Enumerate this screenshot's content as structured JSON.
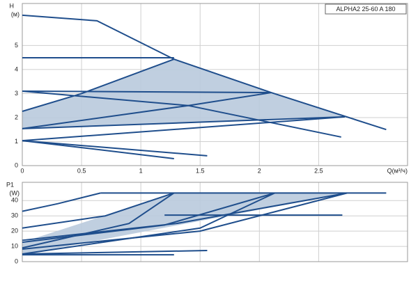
{
  "chart_data": [
    {
      "type": "line",
      "title": "ALPHA2 25-60 A 180",
      "y_label": "H",
      "y_unit": "(м)",
      "x_label": "Q(м³/ч)",
      "xlim": [
        0,
        3.25
      ],
      "ylim": [
        0,
        6.75
      ],
      "xticks": [
        0,
        0.5,
        1,
        1.5,
        2,
        2.5
      ],
      "yticks": [
        0,
        1,
        2,
        3,
        4,
        5
      ],
      "grid": true,
      "area": {
        "color": "#b9cadd",
        "x": [
          0,
          0.5,
          1.28,
          2.1,
          2.72,
          0
        ],
        "y": [
          2.26,
          3.0,
          4.43,
          3.04,
          2.03,
          1.54
        ]
      },
      "series": [
        {
          "color": "#1f4e8c",
          "x": [
            0,
            0.63,
            1.28,
            2.1,
            3.07
          ],
          "y": [
            6.26,
            6.03,
            4.43,
            3.04,
            1.5
          ]
        },
        {
          "color": "#1f4e8c",
          "x": [
            0,
            1.28
          ],
          "y": [
            4.49,
            4.49
          ]
        },
        {
          "color": "#1f4e8c",
          "x": [
            0,
            2.1
          ],
          "y": [
            3.1,
            3.04
          ]
        },
        {
          "color": "#1f4e8c",
          "x": [
            0,
            0.5,
            1.28
          ],
          "y": [
            2.26,
            3.0,
            4.43
          ]
        },
        {
          "color": "#1f4e8c",
          "x": [
            0,
            1.4,
            2.69
          ],
          "y": [
            3.1,
            2.5,
            1.19
          ]
        },
        {
          "color": "#1f4e8c",
          "x": [
            0,
            1.4,
            2.1
          ],
          "y": [
            1.54,
            2.5,
            3.04
          ]
        },
        {
          "color": "#1f4e8c",
          "x": [
            0,
            2.72
          ],
          "y": [
            1.04,
            2.03
          ]
        },
        {
          "color": "#1f4e8c",
          "x": [
            0,
            2.72
          ],
          "y": [
            1.54,
            2.03
          ]
        },
        {
          "color": "#1f4e8c",
          "x": [
            0,
            0.5,
            1.28
          ],
          "y": [
            1.04,
            0.75,
            0.29
          ]
        },
        {
          "color": "#1f4e8c",
          "x": [
            0,
            1.56
          ],
          "y": [
            1.04,
            0.41
          ]
        }
      ]
    },
    {
      "type": "line",
      "y_label": "P1",
      "y_unit": "(W)",
      "xlim": [
        0,
        3.25
      ],
      "ylim": [
        0,
        52
      ],
      "yticks": [
        0,
        10,
        20,
        30,
        40
      ],
      "grid": true,
      "area": {
        "color": "#b9cadd",
        "x": [
          0,
          1.28,
          2.74,
          0
        ],
        "y": [
          12.7,
          45,
          45,
          4.5
        ]
      },
      "series": [
        {
          "color": "#1f4e8c",
          "x": [
            0,
            0.3,
            0.66
          ],
          "y": [
            33,
            38,
            45
          ]
        },
        {
          "color": "#1f4e8c",
          "x": [
            0,
            0.7,
            1.28
          ],
          "y": [
            22,
            30,
            45
          ]
        },
        {
          "color": "#1f4e8c",
          "x": [
            0,
            1.2,
            2.13
          ],
          "y": [
            12.7,
            24,
            45
          ]
        },
        {
          "color": "#1f4e8c",
          "x": [
            0,
            1.5,
            2.74
          ],
          "y": [
            8.2,
            20,
            45
          ]
        },
        {
          "color": "#1f4e8c",
          "x": [
            0.66,
            3.07
          ],
          "y": [
            45,
            45
          ]
        },
        {
          "color": "#1f4e8c",
          "x": [
            1.2,
            2.7
          ],
          "y": [
            30.5,
            30.5
          ]
        },
        {
          "color": "#1f4e8c",
          "x": [
            0,
            0.9,
            1.28
          ],
          "y": [
            9,
            25,
            45
          ]
        },
        {
          "color": "#1f4e8c",
          "x": [
            0,
            1.5,
            2.13
          ],
          "y": [
            5,
            22,
            45
          ]
        },
        {
          "color": "#1f4e8c",
          "x": [
            0,
            1.3,
            2.74
          ],
          "y": [
            14,
            25,
            45
          ]
        },
        {
          "color": "#1f4e8c",
          "x": [
            0,
            1.28
          ],
          "y": [
            4.5,
            4.5
          ]
        },
        {
          "color": "#1f4e8c",
          "x": [
            0,
            1.56
          ],
          "y": [
            5,
            7.3
          ]
        }
      ]
    }
  ]
}
